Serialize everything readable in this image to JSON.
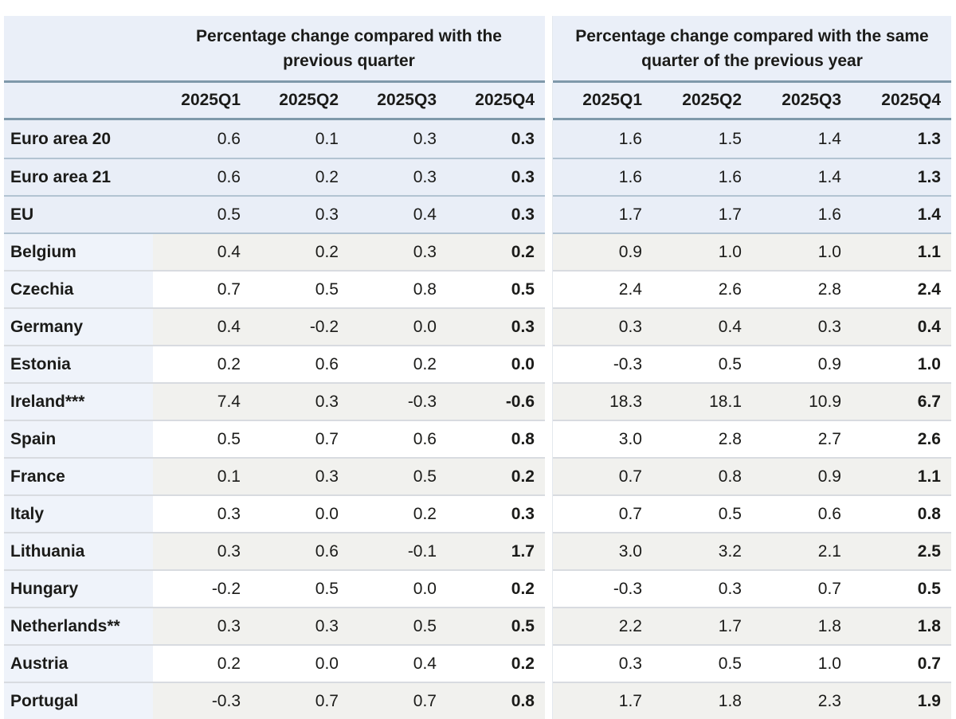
{
  "table": {
    "corner_label": "",
    "group_headers": [
      "Percentage change compared with the previous quarter",
      "Percentage change compared with the same quarter of the previous year"
    ],
    "quarter_headers": [
      "2025Q1",
      "2025Q2",
      "2025Q3",
      "2025Q4",
      "2025Q1",
      "2025Q2",
      "2025Q3",
      "2025Q4"
    ],
    "rows": [
      {
        "label": "Euro area 20",
        "aggregate": true,
        "qoq": [
          "0.6",
          "0.1",
          "0.3",
          "0.3"
        ],
        "yoy": [
          "1.6",
          "1.5",
          "1.4",
          "1.3"
        ]
      },
      {
        "label": "Euro area 21",
        "aggregate": true,
        "qoq": [
          "0.6",
          "0.2",
          "0.3",
          "0.3"
        ],
        "yoy": [
          "1.6",
          "1.6",
          "1.4",
          "1.3"
        ]
      },
      {
        "label": "EU",
        "aggregate": true,
        "qoq": [
          "0.5",
          "0.3",
          "0.4",
          "0.3"
        ],
        "yoy": [
          "1.7",
          "1.7",
          "1.6",
          "1.4"
        ]
      },
      {
        "label": "Belgium",
        "aggregate": false,
        "qoq": [
          "0.4",
          "0.2",
          "0.3",
          "0.2"
        ],
        "yoy": [
          "0.9",
          "1.0",
          "1.0",
          "1.1"
        ]
      },
      {
        "label": "Czechia",
        "aggregate": false,
        "qoq": [
          "0.7",
          "0.5",
          "0.8",
          "0.5"
        ],
        "yoy": [
          "2.4",
          "2.6",
          "2.8",
          "2.4"
        ]
      },
      {
        "label": "Germany",
        "aggregate": false,
        "qoq": [
          "0.4",
          "-0.2",
          "0.0",
          "0.3"
        ],
        "yoy": [
          "0.3",
          "0.4",
          "0.3",
          "0.4"
        ]
      },
      {
        "label": "Estonia",
        "aggregate": false,
        "qoq": [
          "0.2",
          "0.6",
          "0.2",
          "0.0"
        ],
        "yoy": [
          "-0.3",
          "0.5",
          "0.9",
          "1.0"
        ]
      },
      {
        "label": "Ireland***",
        "aggregate": false,
        "qoq": [
          "7.4",
          "0.3",
          "-0.3",
          "-0.6"
        ],
        "yoy": [
          "18.3",
          "18.1",
          "10.9",
          "6.7"
        ]
      },
      {
        "label": "Spain",
        "aggregate": false,
        "qoq": [
          "0.5",
          "0.7",
          "0.6",
          "0.8"
        ],
        "yoy": [
          "3.0",
          "2.8",
          "2.7",
          "2.6"
        ]
      },
      {
        "label": "France",
        "aggregate": false,
        "qoq": [
          "0.1",
          "0.3",
          "0.5",
          "0.2"
        ],
        "yoy": [
          "0.7",
          "0.8",
          "0.9",
          "1.1"
        ]
      },
      {
        "label": "Italy",
        "aggregate": false,
        "qoq": [
          "0.3",
          "0.0",
          "0.2",
          "0.3"
        ],
        "yoy": [
          "0.7",
          "0.5",
          "0.6",
          "0.8"
        ]
      },
      {
        "label": "Lithuania",
        "aggregate": false,
        "qoq": [
          "0.3",
          "0.6",
          "-0.1",
          "1.7"
        ],
        "yoy": [
          "3.0",
          "3.2",
          "2.1",
          "2.5"
        ]
      },
      {
        "label": "Hungary",
        "aggregate": false,
        "qoq": [
          "-0.2",
          "0.5",
          "0.0",
          "0.2"
        ],
        "yoy": [
          "-0.3",
          "0.3",
          "0.7",
          "0.5"
        ]
      },
      {
        "label": "Netherlands**",
        "aggregate": false,
        "qoq": [
          "0.3",
          "0.3",
          "0.5",
          "0.5"
        ],
        "yoy": [
          "2.2",
          "1.7",
          "1.8",
          "1.8"
        ]
      },
      {
        "label": "Austria",
        "aggregate": false,
        "qoq": [
          "0.2",
          "0.0",
          "0.4",
          "0.2"
        ],
        "yoy": [
          "0.3",
          "0.5",
          "1.0",
          "0.7"
        ]
      },
      {
        "label": "Portugal",
        "aggregate": false,
        "qoq": [
          "-0.3",
          "0.7",
          "0.7",
          "0.8"
        ],
        "yoy": [
          "1.7",
          "1.8",
          "2.3",
          "1.9"
        ]
      }
    ],
    "colors": {
      "header_bg": "#eaeff8",
      "aggregate_row_bg": "#e9eef7",
      "label_column_bg": "#eff3fa",
      "stripe_row_bg": "#f1f1ee",
      "white_row_bg": "#ffffff",
      "steel_border": "#7f99aa",
      "aggregate_separator": "#b2c3d2",
      "country_separator": "#d8dbe0",
      "text": "#1b1b19"
    }
  }
}
